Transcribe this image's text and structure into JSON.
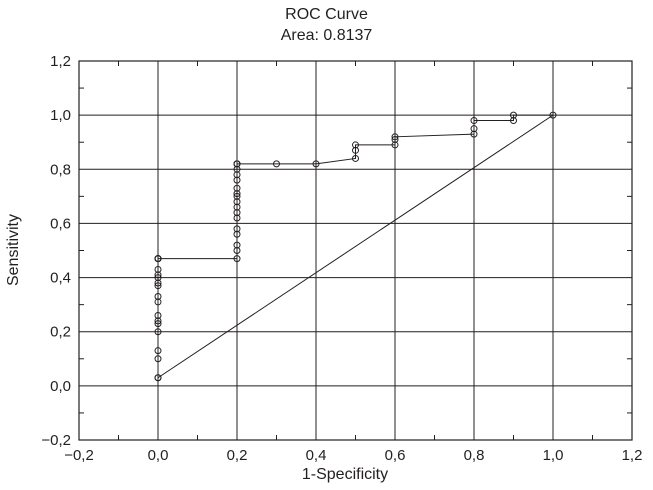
{
  "chart_data": {
    "type": "line",
    "title": "ROC Curve",
    "subtitle": "Area: 0.8137",
    "xlabel": "1-Specificity",
    "ylabel": "Sensitivity",
    "xlim": [
      -0.2,
      1.2
    ],
    "ylim": [
      -0.2,
      1.2
    ],
    "xticks": [
      "−0,2",
      "0,0",
      "0,2",
      "0,4",
      "0,6",
      "0,8",
      "1,0",
      "1,2"
    ],
    "yticks": [
      "−0,2",
      "0,0",
      "0,2",
      "0,4",
      "0,6",
      "0,8",
      "1,0",
      "1,2"
    ],
    "grid": true,
    "series": [
      {
        "x": [
          0.0,
          0.0,
          0.0,
          0.0,
          0.0,
          0.0,
          0.0,
          0.0,
          0.0,
          0.0,
          0.0,
          0.0,
          0.0,
          0.0,
          0.0,
          0.0,
          0.0,
          0.0,
          0.0,
          0.2,
          0.2,
          0.2,
          0.2,
          0.2,
          0.2,
          0.2,
          0.2,
          0.2,
          0.2,
          0.2,
          0.2,
          0.2,
          0.2,
          0.2,
          0.2,
          0.2,
          0.2,
          0.3,
          0.4,
          0.5,
          0.5,
          0.5,
          0.6,
          0.6,
          0.6,
          0.8,
          0.8,
          0.8,
          0.9,
          0.9,
          1.0
        ],
        "y": [
          0.03,
          0.03,
          0.1,
          0.13,
          0.2,
          0.23,
          0.24,
          0.26,
          0.31,
          0.33,
          0.37,
          0.38,
          0.4,
          0.41,
          0.43,
          0.47,
          0.47,
          0.47,
          0.47,
          0.47,
          0.5,
          0.52,
          0.56,
          0.58,
          0.62,
          0.64,
          0.66,
          0.68,
          0.7,
          0.71,
          0.73,
          0.76,
          0.78,
          0.8,
          0.82,
          0.82,
          0.82,
          0.82,
          0.82,
          0.84,
          0.87,
          0.89,
          0.89,
          0.91,
          0.92,
          0.93,
          0.95,
          0.98,
          0.98,
          1.0,
          1.0
        ]
      },
      {
        "x": [
          0.0,
          1.0
        ],
        "y": [
          0.03,
          1.0
        ]
      }
    ]
  }
}
